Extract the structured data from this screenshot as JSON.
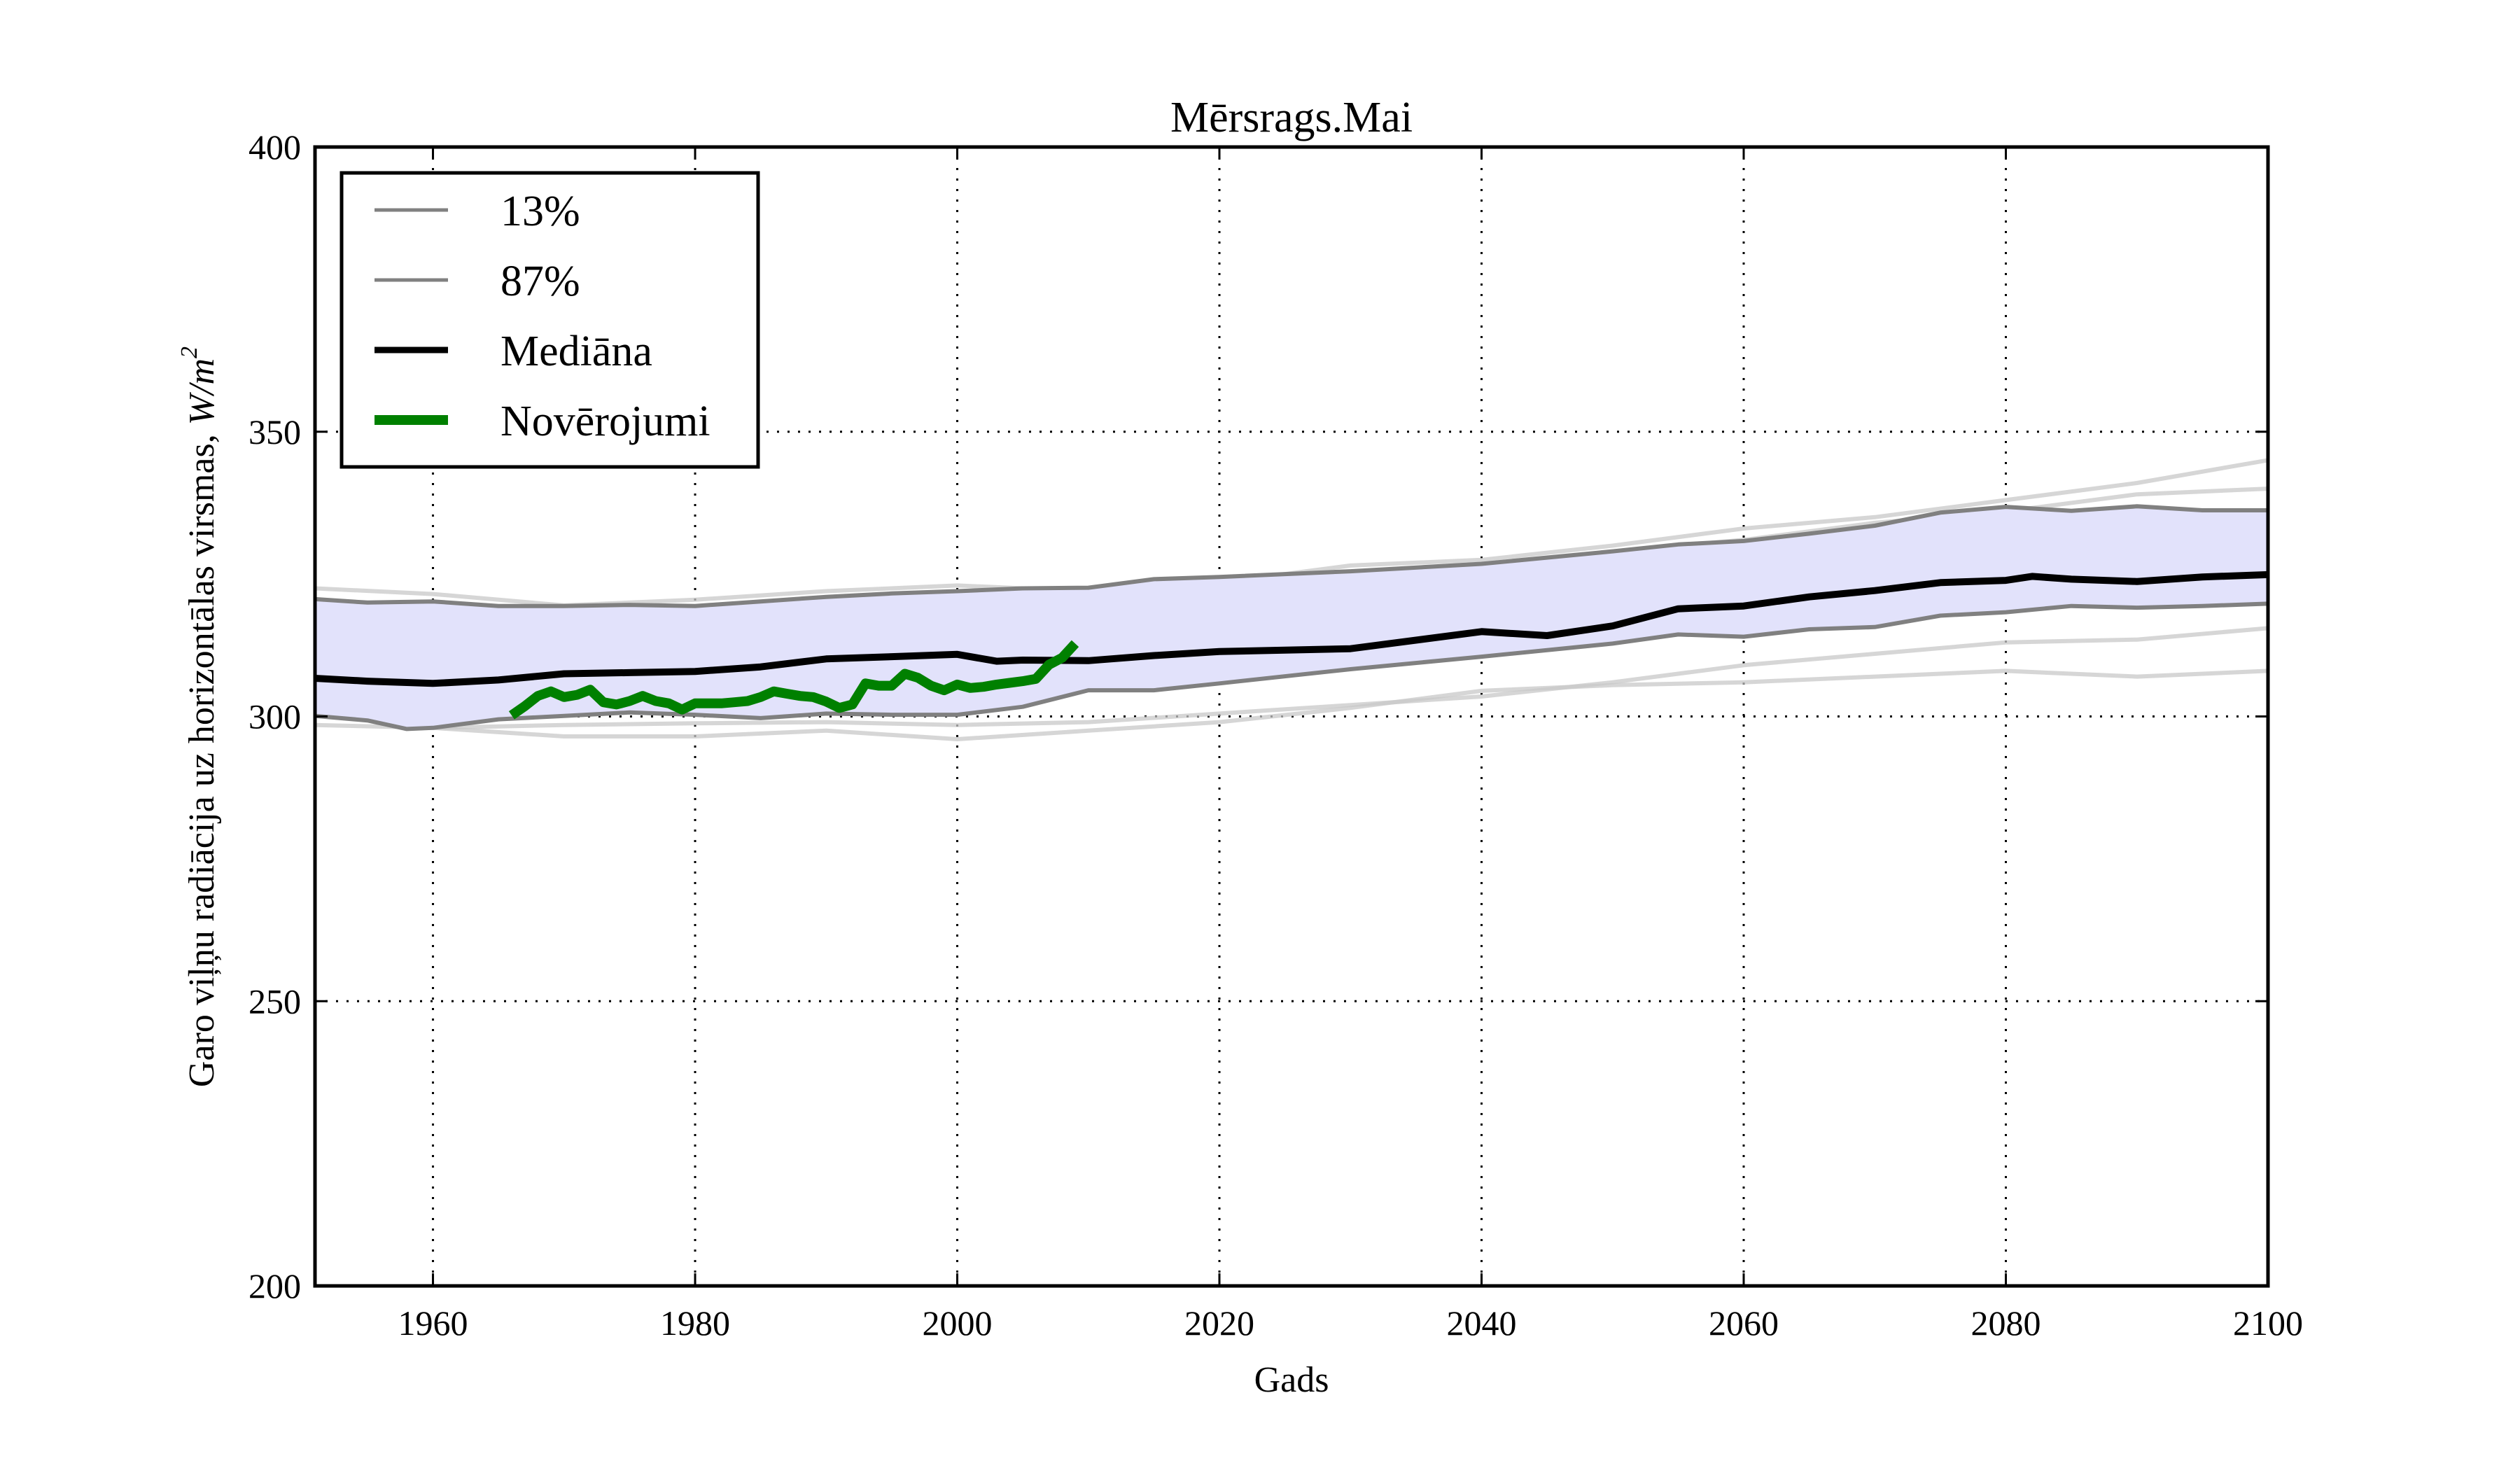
{
  "chart_data": {
    "type": "line",
    "title": "Mērsrags.Mai",
    "xlabel": "Gads",
    "ylabel": "Garo viļņu radiācija uz horizontālas virsmas, ",
    "ylabel_unit": "W/m",
    "ylabel_unit_sup": "2",
    "xlim": [
      1951,
      2100
    ],
    "ylim": [
      200,
      400
    ],
    "xticks": [
      1960,
      1980,
      2000,
      2020,
      2040,
      2060,
      2080,
      2100
    ],
    "xtick_labels": [
      "1960",
      "1980",
      "2000",
      "2020",
      "2040",
      "2060",
      "2080",
      "2100"
    ],
    "yticks": [
      200,
      250,
      300,
      350,
      400
    ],
    "ytick_labels": [
      "200",
      "250",
      "300",
      "350",
      "400"
    ],
    "grid": true,
    "legend": {
      "position": "top-left",
      "entries": [
        {
          "label": "13%",
          "color": "#808080",
          "style": "thin"
        },
        {
          "label": "87%",
          "color": "#808080",
          "style": "thin"
        },
        {
          "label": "Mediāna",
          "color": "#000000",
          "style": "medium"
        },
        {
          "label": "Novērojumi",
          "color": "#008000",
          "style": "thick"
        }
      ]
    },
    "band": {
      "name": "13%–87% range",
      "color": "#e2e2fb"
    },
    "series": [
      {
        "name": "13%",
        "color": "#808080",
        "x": [
          1951,
          1955,
          1958,
          1960,
          1965,
          1970,
          1975,
          1980,
          1985,
          1990,
          1995,
          2000,
          2005,
          2010,
          2015,
          2020,
          2030,
          2040,
          2050,
          2055,
          2060,
          2065,
          2070,
          2075,
          2080,
          2085,
          2090,
          2095,
          2100
        ],
        "y": [
          300.1,
          299.3,
          297.8,
          298.0,
          299.5,
          300.1,
          300.7,
          300.3,
          299.7,
          300.5,
          300.3,
          300.3,
          301.7,
          304.6,
          304.6,
          305.8,
          308.3,
          310.5,
          312.8,
          314.4,
          314.0,
          315.3,
          315.7,
          317.7,
          318.3,
          319.4,
          319.1,
          319.4,
          319.8
        ]
      },
      {
        "name": "87%",
        "color": "#808080",
        "x": [
          1951,
          1955,
          1960,
          1965,
          1970,
          1975,
          1980,
          1985,
          1990,
          1995,
          2000,
          2005,
          2010,
          2015,
          2020,
          2030,
          2040,
          2050,
          2055,
          2060,
          2065,
          2070,
          2075,
          2080,
          2085,
          2090,
          2095,
          2100
        ],
        "y": [
          320.6,
          320.0,
          320.2,
          319.4,
          319.4,
          319.6,
          319.4,
          320.2,
          321.0,
          321.6,
          322.0,
          322.5,
          322.6,
          324.1,
          324.5,
          325.5,
          326.8,
          329.0,
          330.2,
          330.8,
          332.1,
          333.5,
          335.8,
          336.8,
          336.1,
          336.9,
          336.2,
          336.2
        ]
      },
      {
        "name": "Mediāna",
        "color": "#000000",
        "x": [
          1951,
          1955,
          1960,
          1965,
          1970,
          1975,
          1980,
          1985,
          1990,
          1995,
          2000,
          2003,
          2005,
          2010,
          2015,
          2020,
          2030,
          2040,
          2045,
          2050,
          2055,
          2060,
          2065,
          2070,
          2075,
          2080,
          2082,
          2085,
          2090,
          2095,
          2100
        ],
        "y": [
          306.7,
          306.2,
          305.8,
          306.4,
          307.5,
          307.7,
          307.9,
          308.7,
          310.1,
          310.5,
          310.9,
          309.7,
          309.9,
          309.8,
          310.7,
          311.4,
          311.9,
          314.9,
          314.2,
          315.9,
          318.9,
          319.4,
          321.0,
          322.1,
          323.5,
          323.9,
          324.6,
          324.1,
          323.7,
          324.5,
          324.9
        ]
      },
      {
        "name": "Novērojumi",
        "color": "#008000",
        "x": [
          1966,
          1967,
          1968,
          1969,
          1970,
          1971,
          1972,
          1973,
          1974,
          1975,
          1976,
          1977,
          1978,
          1979,
          1980,
          1981,
          1982,
          1983,
          1984,
          1985,
          1986,
          1987,
          1988,
          1989,
          1990,
          1991,
          1992,
          1993,
          1994,
          1995,
          1996,
          1997,
          1998,
          1999,
          2000,
          2001,
          2002,
          2003,
          2004,
          2005,
          2006,
          2007,
          2008,
          2009
        ],
        "y": [
          300.2,
          301.8,
          303.6,
          304.4,
          303.4,
          303.8,
          304.7,
          302.5,
          302.1,
          302.7,
          303.6,
          302.7,
          302.3,
          301.2,
          302.3,
          302.3,
          302.3,
          302.5,
          302.7,
          303.4,
          304.4,
          304.0,
          303.6,
          303.4,
          302.6,
          301.5,
          302.1,
          305.8,
          305.4,
          305.4,
          307.5,
          306.8,
          305.4,
          304.6,
          305.6,
          305.0,
          305.2,
          305.6,
          305.9,
          306.2,
          306.6,
          309.1,
          310.3,
          312.8
        ]
      }
    ],
    "ensemble_members": [
      {
        "x": [
          1951,
          1960,
          1970,
          1980,
          1990,
          2000,
          2010,
          2020,
          2030,
          2040,
          2050,
          2060,
          2070,
          2080,
          2090,
          2100
        ],
        "y": [
          322.5,
          321.5,
          319.5,
          320.5,
          322.0,
          323.0,
          322.0,
          323.5,
          326.5,
          327.5,
          330.0,
          333.0,
          335.0,
          338.0,
          341.0,
          345.0
        ]
      },
      {
        "x": [
          1951,
          1960,
          1970,
          1980,
          1990,
          2000,
          2010,
          2020,
          2030,
          2040,
          2050,
          2060,
          2070,
          2080,
          2090,
          2100
        ],
        "y": [
          314.5,
          314.0,
          315.0,
          315.5,
          316.0,
          317.0,
          318.5,
          322.0,
          324.0,
          326.0,
          329.0,
          331.0,
          334.0,
          336.0,
          339.0,
          340.0
        ]
      },
      {
        "x": [
          1951,
          1960,
          1970,
          1980,
          1990,
          2000,
          2010,
          2020,
          2030,
          2040,
          2050,
          2060,
          2070,
          2080,
          2090,
          2100
        ],
        "y": [
          311.0,
          310.5,
          311.0,
          310.0,
          312.5,
          312.0,
          315.0,
          318.0,
          321.0,
          324.0,
          327.0,
          330.0,
          332.0,
          334.0,
          334.0,
          333.5
        ]
      },
      {
        "x": [
          1951,
          1960,
          1970,
          1980,
          1990,
          2000,
          2010,
          2020,
          2030,
          2040,
          2050,
          2060,
          2070,
          2080,
          2090,
          2100
        ],
        "y": [
          309.5,
          309.0,
          307.0,
          308.5,
          309.0,
          311.0,
          313.0,
          314.0,
          313.5,
          316.0,
          318.0,
          320.5,
          322.5,
          325.0,
          325.5,
          327.0
        ]
      },
      {
        "x": [
          1951,
          1960,
          1970,
          1980,
          1990,
          2000,
          2010,
          2020,
          2030,
          2040,
          2050,
          2060,
          2070,
          2080,
          2090,
          2100
        ],
        "y": [
          307.5,
          306.5,
          305.0,
          305.5,
          306.5,
          308.0,
          310.0,
          310.5,
          311.0,
          313.0,
          316.0,
          318.0,
          320.5,
          322.0,
          323.0,
          323.5
        ]
      },
      {
        "x": [
          1951,
          1960,
          1970,
          1980,
          1990,
          2000,
          2010,
          2020,
          2030,
          2040,
          2050,
          2060,
          2070,
          2080,
          2090,
          2100
        ],
        "y": [
          304.0,
          303.0,
          302.5,
          303.5,
          304.0,
          306.0,
          307.0,
          308.5,
          309.5,
          311.0,
          313.5,
          316.0,
          318.5,
          320.0,
          321.0,
          321.5
        ]
      },
      {
        "x": [
          1951,
          1960,
          1970,
          1980,
          1990,
          2000,
          2010,
          2020,
          2030,
          2040,
          2050,
          2060,
          2070,
          2080,
          2090,
          2100
        ],
        "y": [
          298.5,
          298.0,
          298.5,
          298.8,
          299.0,
          298.5,
          299.0,
          300.5,
          302.0,
          303.5,
          306.0,
          309.0,
          311.0,
          313.0,
          313.5,
          315.5
        ]
      },
      {
        "x": [
          1951,
          1960,
          1970,
          1980,
          1990,
          2000,
          2010,
          2020,
          2030,
          2040,
          2050,
          2060,
          2070,
          2080,
          2090,
          2100
        ],
        "y": [
          302.5,
          298.0,
          296.5,
          296.5,
          297.5,
          296.0,
          297.5,
          299.0,
          301.5,
          304.5,
          305.5,
          306.0,
          307.0,
          308.0,
          307.0,
          308.0
        ]
      }
    ]
  }
}
